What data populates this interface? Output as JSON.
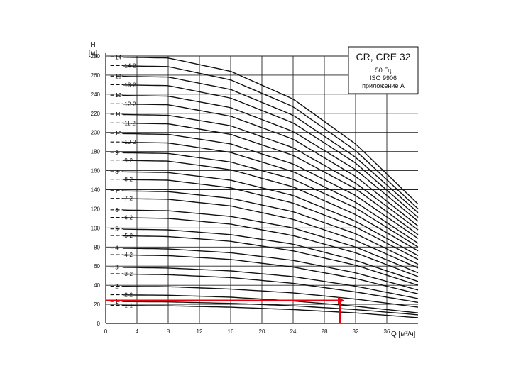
{
  "chart_data": {
    "type": "line",
    "title": "CR, CRE 32",
    "subtitle_lines": [
      "50 Гц",
      "ISO 9906",
      "приложение A"
    ],
    "ylabel_top": "H",
    "ylabel_unit": "[м]",
    "xlabel": "Q [м³/ч]",
    "xlim": [
      0,
      40
    ],
    "ylim": [
      0,
      280
    ],
    "xticks": [
      0,
      4,
      8,
      12,
      16,
      20,
      24,
      28,
      32,
      36
    ],
    "yticks": [
      0,
      20,
      40,
      60,
      80,
      100,
      120,
      140,
      160,
      180,
      200,
      220,
      240,
      260,
      280
    ],
    "grid": true,
    "curve_labels": [
      "1-1",
      "1",
      "2-2",
      "2",
      "3-2",
      "3",
      "4-2",
      "4",
      "5-2",
      "5",
      "6-2",
      "6",
      "7-2",
      "7",
      "8-2",
      "8",
      "9-2",
      "9",
      "10-2",
      "10",
      "11-2",
      "11",
      "12-2",
      "12",
      "13-2",
      "13",
      "14-2",
      "14"
    ],
    "series": [
      {
        "name": "1-1",
        "x": [
          0,
          8,
          16,
          24,
          32,
          40
        ],
        "y": [
          19,
          18.5,
          17,
          14.5,
          11,
          6
        ]
      },
      {
        "name": "1",
        "x": [
          0,
          8,
          16,
          24,
          32,
          40
        ],
        "y": [
          23,
          22.5,
          21,
          18.5,
          14.5,
          9
        ]
      },
      {
        "name": "2-2",
        "x": [
          0,
          8,
          16,
          24,
          32,
          40
        ],
        "y": [
          30,
          29.5,
          27.5,
          23.5,
          18,
          11
        ]
      },
      {
        "name": "2",
        "x": [
          0,
          8,
          16,
          24,
          32,
          40
        ],
        "y": [
          39,
          38.5,
          36,
          32,
          25.5,
          17
        ]
      },
      {
        "name": "3-2",
        "x": [
          0,
          8,
          16,
          24,
          32,
          40
        ],
        "y": [
          52,
          51,
          48,
          42,
          33,
          22
        ]
      },
      {
        "name": "3",
        "x": [
          0,
          8,
          16,
          24,
          32,
          40
        ],
        "y": [
          59,
          58,
          55,
          49,
          39,
          26
        ]
      },
      {
        "name": "4-2",
        "x": [
          0,
          8,
          16,
          24,
          32,
          40
        ],
        "y": [
          72,
          71,
          67,
          59,
          47,
          31
        ]
      },
      {
        "name": "4",
        "x": [
          0,
          8,
          16,
          24,
          32,
          40
        ],
        "y": [
          79,
          78,
          74,
          66,
          53,
          35
        ]
      },
      {
        "name": "5-2",
        "x": [
          0,
          8,
          16,
          24,
          32,
          40
        ],
        "y": [
          92,
          91,
          86,
          76,
          61,
          40
        ]
      },
      {
        "name": "5",
        "x": [
          0,
          8,
          16,
          24,
          32,
          40
        ],
        "y": [
          99,
          98,
          93,
          83,
          66,
          44
        ]
      },
      {
        "name": "6-2",
        "x": [
          0,
          8,
          16,
          24,
          32,
          40
        ],
        "y": [
          111,
          110,
          104,
          92,
          74,
          49
        ]
      },
      {
        "name": "6",
        "x": [
          0,
          8,
          16,
          24,
          32,
          40
        ],
        "y": [
          119,
          118,
          112,
          100,
          80,
          53
        ]
      },
      {
        "name": "7-2",
        "x": [
          0,
          8,
          16,
          24,
          32,
          40
        ],
        "y": [
          131,
          130,
          123,
          109,
          87,
          58
        ]
      },
      {
        "name": "7",
        "x": [
          0,
          8,
          16,
          24,
          32,
          40
        ],
        "y": [
          139,
          138,
          131,
          117,
          94,
          62
        ]
      },
      {
        "name": "8-2",
        "x": [
          0,
          8,
          16,
          24,
          32,
          40
        ],
        "y": [
          151,
          150,
          142,
          126,
          101,
          67
        ]
      },
      {
        "name": "8",
        "x": [
          0,
          8,
          16,
          24,
          32,
          40
        ],
        "y": [
          159,
          158,
          150,
          134,
          107,
          71
        ]
      },
      {
        "name": "9-2",
        "x": [
          0,
          8,
          16,
          24,
          32,
          40
        ],
        "y": [
          171,
          170,
          161,
          143,
          114,
          76
        ]
      },
      {
        "name": "9",
        "x": [
          0,
          8,
          16,
          24,
          32,
          40
        ],
        "y": [
          179,
          178,
          169,
          151,
          121,
          80
        ]
      },
      {
        "name": "10-2",
        "x": [
          0,
          8,
          16,
          24,
          32,
          40
        ],
        "y": [
          190,
          189,
          179,
          159,
          127,
          84
        ]
      },
      {
        "name": "10",
        "x": [
          0,
          8,
          16,
          24,
          32,
          40
        ],
        "y": [
          199,
          198,
          188,
          167,
          134,
          89
        ]
      },
      {
        "name": "11-2",
        "x": [
          0,
          8,
          16,
          24,
          32,
          40
        ],
        "y": [
          210,
          209,
          198,
          176,
          141,
          93
        ]
      },
      {
        "name": "11",
        "x": [
          0,
          8,
          16,
          24,
          32,
          40
        ],
        "y": [
          219,
          218,
          207,
          184,
          147,
          98
        ]
      },
      {
        "name": "12-2",
        "x": [
          0,
          8,
          16,
          24,
          32,
          40
        ],
        "y": [
          230,
          229,
          217,
          193,
          154,
          102
        ]
      },
      {
        "name": "12",
        "x": [
          0,
          8,
          16,
          24,
          32,
          40
        ],
        "y": [
          239,
          238,
          226,
          201,
          161,
          107
        ]
      },
      {
        "name": "13-2",
        "x": [
          0,
          8,
          16,
          24,
          32,
          40
        ],
        "y": [
          250,
          249,
          236,
          210,
          168,
          111
        ]
      },
      {
        "name": "13",
        "x": [
          0,
          8,
          16,
          24,
          32,
          40
        ],
        "y": [
          259,
          258,
          245,
          218,
          174,
          116
        ]
      },
      {
        "name": "14-2",
        "x": [
          0,
          8,
          16,
          24,
          32,
          40
        ],
        "y": [
          270,
          269,
          255,
          227,
          181,
          120
        ]
      },
      {
        "name": "14",
        "x": [
          0,
          8,
          16,
          24,
          32,
          40
        ],
        "y": [
          279,
          278,
          264,
          235,
          188,
          125
        ]
      }
    ],
    "annotation": {
      "type": "red-leader",
      "color": "#e8000b",
      "path_data_points": [
        {
          "x": 0,
          "y": 24
        },
        {
          "x": 30,
          "y": 24
        },
        {
          "x": 30,
          "y": 0
        }
      ]
    },
    "line_color": "#111111"
  }
}
